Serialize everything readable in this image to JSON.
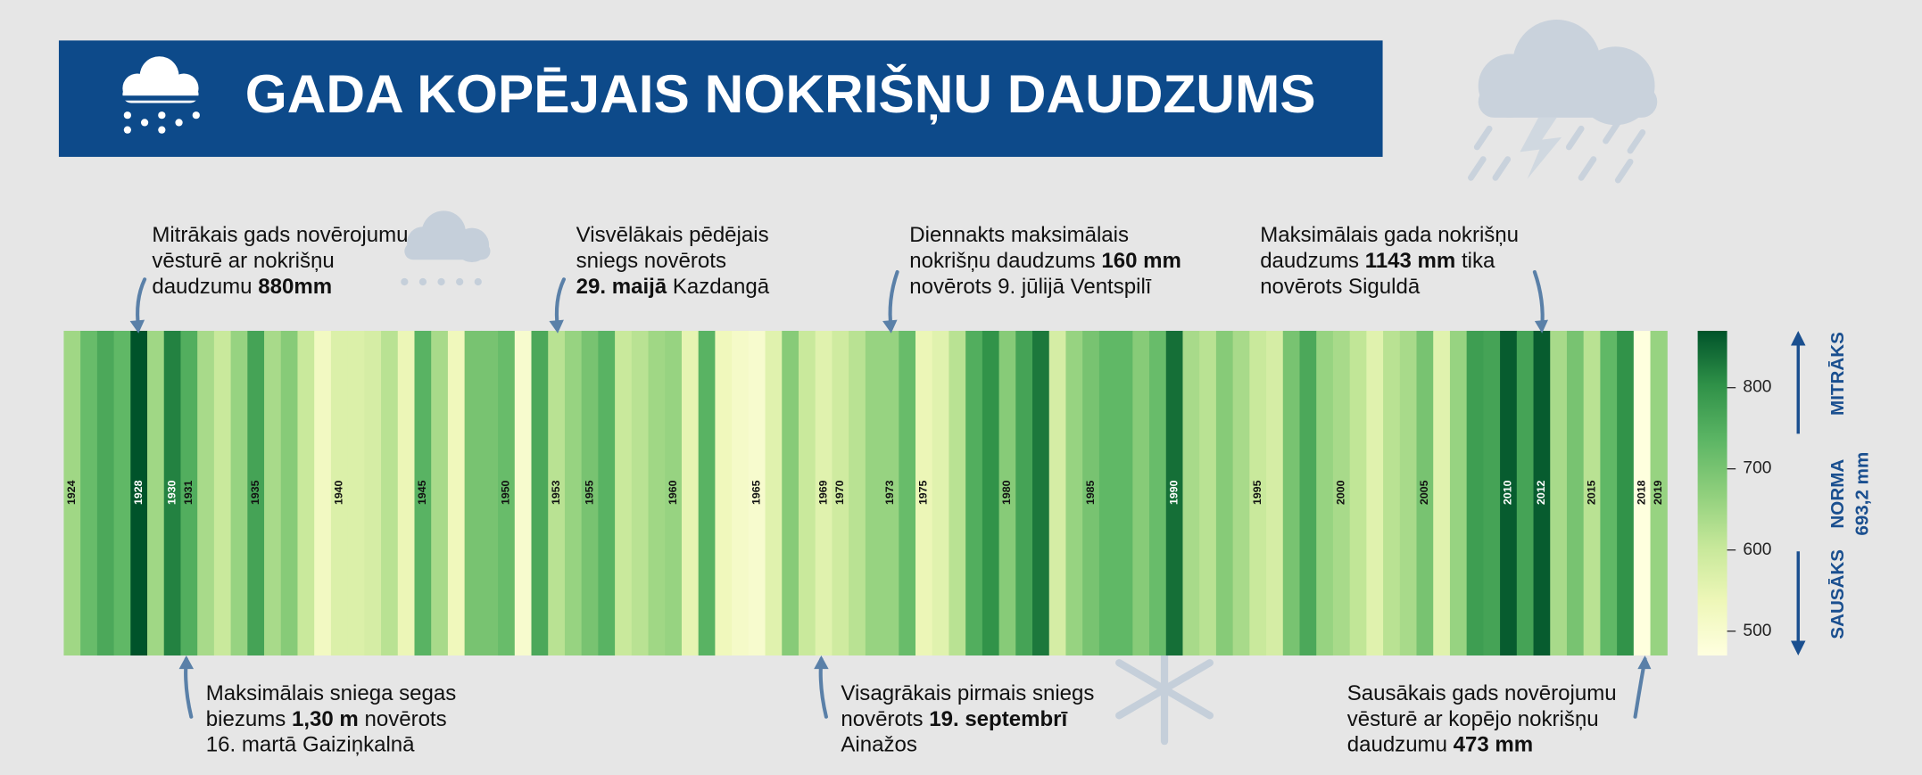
{
  "chart_data": {
    "type": "stripes",
    "title": "GADA KOPĒJAIS NOKRIŠŅU DAUDZUMS",
    "categories": [
      "1924",
      null,
      null,
      null,
      "1928",
      null,
      "1930",
      "1931",
      null,
      null,
      null,
      "1935",
      null,
      null,
      null,
      null,
      "1940",
      null,
      null,
      null,
      null,
      "1945",
      null,
      null,
      null,
      null,
      "1950",
      null,
      null,
      "1953",
      null,
      "1955",
      null,
      null,
      null,
      null,
      "1960",
      null,
      null,
      null,
      null,
      "1965",
      null,
      null,
      null,
      "1969",
      "1970",
      null,
      null,
      "1973",
      null,
      "1975",
      null,
      null,
      null,
      null,
      "1980",
      null,
      null,
      null,
      null,
      "1985",
      null,
      null,
      null,
      null,
      "1990",
      null,
      null,
      null,
      null,
      "1995",
      null,
      null,
      null,
      null,
      "2000",
      null,
      null,
      null,
      null,
      "2005",
      null,
      null,
      null,
      null,
      "2010",
      null,
      "2012",
      null,
      null,
      "2015",
      null,
      null,
      "2018",
      "2019"
    ],
    "values": [
      650,
      720,
      760,
      730,
      880,
      650,
      820,
      750,
      640,
      600,
      660,
      770,
      640,
      680,
      600,
      520,
      570,
      570,
      580,
      620,
      540,
      740,
      640,
      530,
      700,
      700,
      720,
      500,
      760,
      620,
      660,
      700,
      740,
      600,
      620,
      650,
      660,
      550,
      740,
      530,
      510,
      500,
      560,
      680,
      600,
      560,
      590,
      620,
      660,
      660,
      720,
      540,
      560,
      620,
      750,
      800,
      680,
      770,
      830,
      580,
      660,
      700,
      730,
      730,
      680,
      720,
      840,
      640,
      620,
      680,
      640,
      600,
      580,
      700,
      760,
      660,
      640,
      610,
      560,
      620,
      640,
      700,
      560,
      660,
      780,
      770,
      860,
      770,
      860,
      640,
      700,
      620,
      730,
      800,
      473,
      660
    ],
    "colors": [
      "#ffffe0",
      "#eef7b8",
      "#c7e89a",
      "#8fcf7c",
      "#5bb564",
      "#2f9148",
      "#00532a"
    ],
    "clim": [
      470,
      870
    ],
    "cticks": [
      500,
      600,
      700,
      800
    ],
    "colorbar_labels": {
      "high": "MITRĀKS",
      "norm": "NORMA",
      "norm_value": "693,2 mm",
      "low": "SAUSĀKS"
    },
    "annotations": [
      {
        "lines": [
          [
            "Mitrākais gads novērojumu"
          ],
          [
            "vēsturē ar nokrišņu"
          ],
          [
            "daudzumu ",
            {
              "bold": "880mm"
            }
          ]
        ]
      },
      {
        "lines": [
          [
            "Visvēlākais pēdējais"
          ],
          [
            "sniegs novērots"
          ],
          [
            {
              "bold": "29. maijā"
            },
            " Kazdangā"
          ]
        ]
      },
      {
        "lines": [
          [
            "Diennakts maksimālais"
          ],
          [
            "nokrišņu daudzums ",
            {
              "bold": "160 mm"
            }
          ],
          [
            "novērots 9. jūlijā Ventspilī"
          ]
        ]
      },
      {
        "lines": [
          [
            "Maksimālais gada nokrišņu"
          ],
          [
            "daudzums ",
            {
              "bold": "1143 mm"
            },
            " tika"
          ],
          [
            "novērots Siguldā"
          ]
        ]
      },
      {
        "lines": [
          [
            "Maksimālais sniega segas"
          ],
          [
            "biezums ",
            {
              "bold": "1,30 m"
            },
            " novērots"
          ],
          [
            "16. martā Gaiziņkalnā"
          ]
        ]
      },
      {
        "lines": [
          [
            "Visagrākais pirmais sniegs"
          ],
          [
            "novērots ",
            {
              "bold": "19. septembrī"
            }
          ],
          [
            "Ainažos"
          ]
        ]
      },
      {
        "lines": [
          [
            "Sausākais gads novērojumu"
          ],
          [
            "vēsturē ar kopējo nokrišņu"
          ],
          [
            "daudzumu ",
            {
              "bold": "473 mm"
            }
          ]
        ]
      }
    ]
  }
}
